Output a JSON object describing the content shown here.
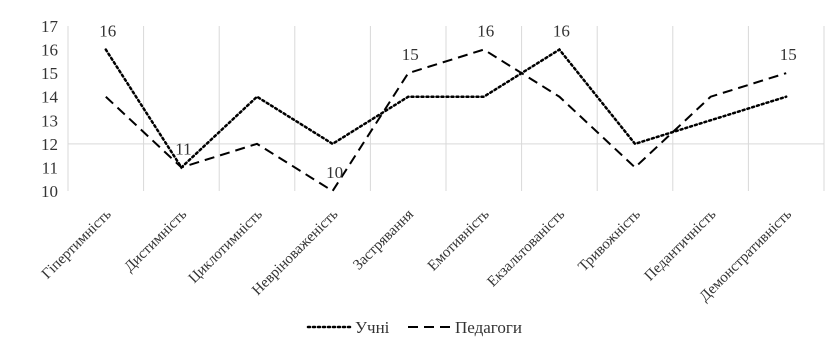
{
  "chart_data": {
    "type": "line",
    "title": "",
    "xlabel": "",
    "ylabel": "",
    "ylim": [
      10,
      17
    ],
    "yticks": [
      10,
      11,
      12,
      13,
      14,
      15,
      16,
      17
    ],
    "grid": "vertical",
    "legend_position": "bottom",
    "categories": [
      "Гіпертимність",
      "Дистимність",
      "Циклотимність",
      "Невріноваженість",
      "Застрявання",
      "Емотивність",
      "Екзальтованість",
      "Тривожність",
      "Педантичність",
      "Демонстративність"
    ],
    "series": [
      {
        "name": "Учні",
        "values": [
          16,
          11,
          14,
          12,
          14,
          14,
          16,
          12,
          13,
          14
        ],
        "style": "dotted",
        "color": "#000000"
      },
      {
        "name": "Педагоги",
        "values": [
          14,
          11,
          12,
          10,
          15,
          16,
          14,
          11,
          14,
          15
        ],
        "style": "dashed",
        "color": "#000000"
      }
    ],
    "data_labels": [
      {
        "series": 0,
        "index": 0,
        "text": "16"
      },
      {
        "series": 1,
        "index": 1,
        "text": "11"
      },
      {
        "series": 1,
        "index": 3,
        "text": "10"
      },
      {
        "series": 1,
        "index": 4,
        "text": "15"
      },
      {
        "series": 1,
        "index": 5,
        "text": "16"
      },
      {
        "series": 0,
        "index": 6,
        "text": "16"
      },
      {
        "series": 1,
        "index": 9,
        "text": "15"
      }
    ]
  }
}
